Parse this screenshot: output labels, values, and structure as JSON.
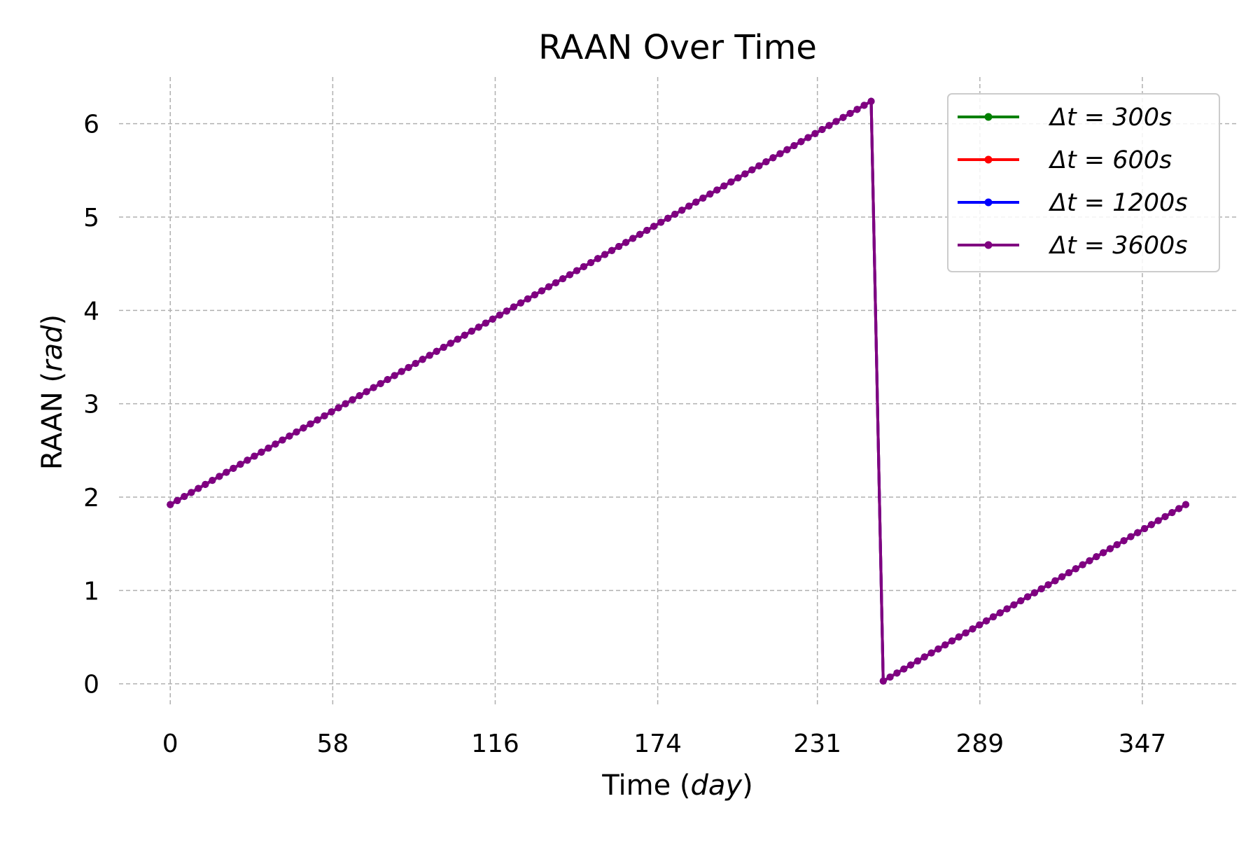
{
  "chart_data": {
    "type": "line",
    "title": "RAAN Over Time",
    "xlabel": "Time (day)",
    "ylabel": "RAAN (rad)",
    "xlabel_main": "Time (",
    "xlabel_unit": "day",
    "xlabel_close": ")",
    "ylabel_main": "RAAN (",
    "ylabel_unit": "rad",
    "ylabel_close": ")",
    "xlim": [
      -18.3,
      380.5
    ],
    "ylim": [
      -0.25,
      6.5
    ],
    "x_ticks": [
      0,
      58,
      116,
      174,
      231,
      289,
      347
    ],
    "y_ticks": [
      0,
      1,
      2,
      3,
      4,
      5,
      6
    ],
    "grid": true,
    "legend_position": "top-right",
    "legend": [
      {
        "label": "Δt = 300s",
        "color": "#008000"
      },
      {
        "label": "Δt = 600s",
        "color": "#ff0000"
      },
      {
        "label": "Δt = 1200s",
        "color": "#0000ff"
      },
      {
        "label": "Δt = 3600s",
        "color": "#800080"
      }
    ],
    "series": [
      {
        "name": "Δt = 300s",
        "color": "#008000",
        "segments": [
          {
            "x0": 0,
            "y0": 1.92,
            "x1": 250.2,
            "y1": 6.24,
            "n": 100
          },
          {
            "x0": 254.5,
            "y0": 0.03,
            "x1": 362.5,
            "y1": 1.92,
            "n": 44
          }
        ]
      },
      {
        "name": "Δt = 600s",
        "color": "#ff0000",
        "segments": [
          {
            "x0": 0,
            "y0": 1.92,
            "x1": 250.2,
            "y1": 6.24,
            "n": 100
          },
          {
            "x0": 254.5,
            "y0": 0.03,
            "x1": 362.5,
            "y1": 1.92,
            "n": 44
          }
        ]
      },
      {
        "name": "Δt = 1200s",
        "color": "#0000ff",
        "segments": [
          {
            "x0": 0,
            "y0": 1.92,
            "x1": 250.2,
            "y1": 6.24,
            "n": 100
          },
          {
            "x0": 254.5,
            "y0": 0.03,
            "x1": 362.5,
            "y1": 1.92,
            "n": 44
          }
        ]
      },
      {
        "name": "Δt = 3600s",
        "color": "#800080",
        "segments": [
          {
            "x0": 0,
            "y0": 1.92,
            "x1": 250.2,
            "y1": 6.24,
            "n": 100
          },
          {
            "x0": 254.5,
            "y0": 0.03,
            "x1": 362.5,
            "y1": 1.92,
            "n": 44
          }
        ]
      }
    ]
  }
}
